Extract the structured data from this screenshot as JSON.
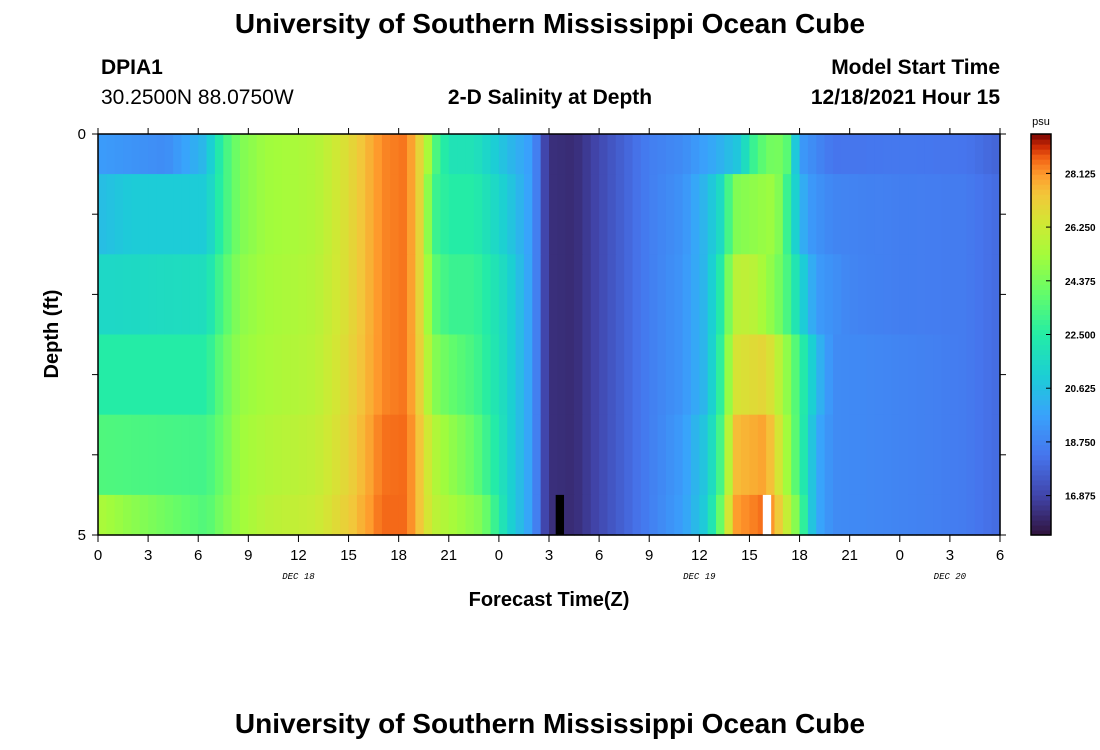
{
  "header": {
    "title": "University of Southern Mississippi Ocean Cube",
    "station_id": "DPIA1",
    "station_coords": "30.2500N  88.0750W",
    "subtitle": "2-D Salinity at Depth",
    "model_start_label": "Model Start Time",
    "model_start_value": "12/18/2021 Hour 15"
  },
  "footer": {
    "title": "University of Southern Mississippi Ocean Cube"
  },
  "chart_data": {
    "type": "heatmap",
    "title": "2-D Salinity at Depth",
    "xlabel": "Forecast Time(Z)",
    "ylabel": "Depth (ft)",
    "x_unit": "hours from Dec 18 00Z",
    "x_range": [
      0,
      54
    ],
    "y_range": [
      0,
      5
    ],
    "y_ticks": [
      0,
      5
    ],
    "x_tick_labels": [
      "0",
      "3",
      "6",
      "9",
      "12",
      "15",
      "18",
      "21",
      "0",
      "3",
      "6",
      "9",
      "12",
      "15",
      "18",
      "21",
      "0",
      "3",
      "6"
    ],
    "date_labels": [
      {
        "label": "DEC 18",
        "hour": 12
      },
      {
        "label": "DEC 19",
        "hour": 36
      },
      {
        "label": "DEC 20",
        "hour": 51
      }
    ],
    "depth_rows": [
      {
        "from": 0.0,
        "to": 0.5
      },
      {
        "from": 0.5,
        "to": 1.5
      },
      {
        "from": 1.5,
        "to": 2.5
      },
      {
        "from": 2.5,
        "to": 3.5
      },
      {
        "from": 3.5,
        "to": 4.5
      },
      {
        "from": 4.5,
        "to": 5.0
      }
    ],
    "salinity_keyframes_psu": [
      [
        [
          0,
          19.5
        ],
        [
          4,
          19.0
        ],
        [
          6.5,
          20.5
        ],
        [
          7.5,
          23.0
        ],
        [
          8.5,
          24.5
        ],
        [
          10,
          25.2
        ],
        [
          13,
          25.6
        ],
        [
          15,
          26.8
        ],
        [
          17,
          28.3
        ],
        [
          18.5,
          28.5
        ],
        [
          19.5,
          26.5
        ],
        [
          20.2,
          23.5
        ],
        [
          21,
          22.0
        ],
        [
          22.5,
          22.0
        ],
        [
          24.5,
          20.5
        ],
        [
          26,
          19.5
        ],
        [
          26.7,
          17.0
        ],
        [
          27.2,
          16.3
        ],
        [
          28.5,
          16.2
        ],
        [
          30,
          17.0
        ],
        [
          31.5,
          17.8
        ],
        [
          33,
          18.6
        ],
        [
          35,
          19.0
        ],
        [
          37,
          20.0
        ],
        [
          38.5,
          21.0
        ],
        [
          39,
          22.5
        ],
        [
          39.5,
          23.5
        ],
        [
          40.5,
          24.5
        ],
        [
          41.2,
          24.0
        ],
        [
          42,
          19.5
        ],
        [
          44,
          18.3
        ],
        [
          48,
          18.4
        ],
        [
          52,
          18.3
        ],
        [
          54,
          17.8
        ]
      ],
      [
        [
          0,
          20.5
        ],
        [
          2,
          21.0
        ],
        [
          6.5,
          21.0
        ],
        [
          7.5,
          23.0
        ],
        [
          8.5,
          24.5
        ],
        [
          10,
          25.2
        ],
        [
          13,
          25.6
        ],
        [
          15,
          26.8
        ],
        [
          17,
          28.3
        ],
        [
          18.5,
          28.5
        ],
        [
          19.5,
          26.5
        ],
        [
          20,
          23.2
        ],
        [
          21,
          22.5
        ],
        [
          22.5,
          22.5
        ],
        [
          24.5,
          21.0
        ],
        [
          26,
          19.5
        ],
        [
          26.7,
          17.0
        ],
        [
          27.2,
          16.3
        ],
        [
          28.5,
          16.2
        ],
        [
          30,
          17.0
        ],
        [
          31.5,
          17.8
        ],
        [
          33,
          18.6
        ],
        [
          35,
          19.2
        ],
        [
          36.5,
          20.5
        ],
        [
          37.5,
          22.0
        ],
        [
          38,
          24.5
        ],
        [
          39,
          24.8
        ],
        [
          40.5,
          25.2
        ],
        [
          41,
          24.0
        ],
        [
          41.5,
          22.0
        ],
        [
          42,
          20.5
        ],
        [
          42.5,
          19.5
        ],
        [
          44,
          18.8
        ],
        [
          48,
          18.6
        ],
        [
          52,
          18.5
        ],
        [
          54,
          18.0
        ]
      ],
      [
        [
          0,
          21.5
        ],
        [
          6.5,
          21.8
        ],
        [
          7.5,
          23.5
        ],
        [
          8.5,
          24.8
        ],
        [
          10,
          25.3
        ],
        [
          13,
          25.7
        ],
        [
          15,
          26.8
        ],
        [
          17,
          28.3
        ],
        [
          18.5,
          28.5
        ],
        [
          19.5,
          26.5
        ],
        [
          20,
          24.0
        ],
        [
          21,
          23.0
        ],
        [
          22.5,
          23.0
        ],
        [
          24.5,
          21.5
        ],
        [
          26,
          19.5
        ],
        [
          26.7,
          17.0
        ],
        [
          27.2,
          16.3
        ],
        [
          28.5,
          16.2
        ],
        [
          30,
          17.0
        ],
        [
          31.5,
          17.8
        ],
        [
          33,
          18.6
        ],
        [
          35,
          19.3
        ],
        [
          36.5,
          20.5
        ],
        [
          37.5,
          23.0
        ],
        [
          38,
          25.8
        ],
        [
          39,
          26.0
        ],
        [
          40,
          25.2
        ],
        [
          41,
          24.0
        ],
        [
          42,
          21.5
        ],
        [
          43,
          19.5
        ],
        [
          45,
          18.8
        ],
        [
          48,
          18.6
        ],
        [
          52,
          18.5
        ],
        [
          54,
          18.0
        ]
      ],
      [
        [
          0,
          22.5
        ],
        [
          6.5,
          22.5
        ],
        [
          7.5,
          24.0
        ],
        [
          8.5,
          25.0
        ],
        [
          10,
          25.4
        ],
        [
          13,
          25.8
        ],
        [
          15,
          26.9
        ],
        [
          17,
          28.3
        ],
        [
          18.5,
          28.5
        ],
        [
          19.5,
          26.6
        ],
        [
          20,
          24.8
        ],
        [
          21,
          24.0
        ],
        [
          22.5,
          23.3
        ],
        [
          24.5,
          21.5
        ],
        [
          26,
          19.5
        ],
        [
          26.7,
          17.0
        ],
        [
          27.2,
          16.3
        ],
        [
          28.5,
          16.2
        ],
        [
          30,
          17.0
        ],
        [
          31.5,
          17.8
        ],
        [
          33,
          18.6
        ],
        [
          35,
          19.3
        ],
        [
          36.5,
          20.5
        ],
        [
          37.5,
          23.5
        ],
        [
          38,
          26.5
        ],
        [
          40,
          27.0
        ],
        [
          41,
          25.5
        ],
        [
          42,
          23.0
        ],
        [
          43,
          20.5
        ],
        [
          44,
          19.0
        ],
        [
          48,
          18.8
        ],
        [
          52,
          18.5
        ],
        [
          54,
          18.0
        ]
      ],
      [
        [
          0,
          23.5
        ],
        [
          6.5,
          23.2
        ],
        [
          7.5,
          24.2
        ],
        [
          8.5,
          25.2
        ],
        [
          10,
          25.6
        ],
        [
          13,
          26.0
        ],
        [
          15,
          27.0
        ],
        [
          17,
          28.5
        ],
        [
          18.5,
          28.6
        ],
        [
          19.5,
          27.0
        ],
        [
          20,
          25.8
        ],
        [
          21,
          25.0
        ],
        [
          22.5,
          24.0
        ],
        [
          24.5,
          21.5
        ],
        [
          26,
          19.5
        ],
        [
          26.7,
          17.0
        ],
        [
          27.2,
          16.3
        ],
        [
          28.5,
          16.2
        ],
        [
          30,
          17.0
        ],
        [
          31.5,
          17.8
        ],
        [
          33,
          18.6
        ],
        [
          35,
          19.5
        ],
        [
          36.5,
          21.0
        ],
        [
          37.5,
          24.0
        ],
        [
          38,
          27.5
        ],
        [
          40,
          28.0
        ],
        [
          41,
          26.0
        ],
        [
          42,
          23.0
        ],
        [
          43,
          20.0
        ],
        [
          44,
          19.0
        ],
        [
          48,
          18.8
        ],
        [
          52,
          18.5
        ],
        [
          54,
          18.0
        ]
      ],
      [
        [
          0,
          25.5
        ],
        [
          2,
          24.8
        ],
        [
          6.5,
          23.5
        ],
        [
          7.5,
          24.5
        ],
        [
          8.5,
          25.2
        ],
        [
          10,
          25.8
        ],
        [
          13,
          26.2
        ],
        [
          15,
          27.2
        ],
        [
          17,
          28.6
        ],
        [
          18.5,
          28.6
        ],
        [
          19.5,
          27.0
        ],
        [
          20,
          26.0
        ],
        [
          21,
          25.5
        ],
        [
          23,
          24.5
        ],
        [
          24.5,
          21.5
        ],
        [
          26,
          19.5
        ],
        [
          26.7,
          17.0
        ],
        [
          27.2,
          16.3
        ],
        [
          28.5,
          16.2
        ],
        [
          30,
          17.0
        ],
        [
          31.5,
          17.8
        ],
        [
          33,
          18.6
        ],
        [
          35,
          19.6
        ],
        [
          36.5,
          21.2
        ],
        [
          37.5,
          25.0
        ],
        [
          38,
          28.0
        ],
        [
          40,
          28.6
        ],
        [
          41,
          26.8
        ],
        [
          42,
          24.0
        ],
        [
          42.5,
          21.5
        ],
        [
          43,
          20.0
        ],
        [
          44,
          19.0
        ],
        [
          48,
          18.8
        ],
        [
          52,
          18.5
        ],
        [
          54,
          18.0
        ]
      ]
    ],
    "gap_markers": [
      {
        "start_hour": 27.4,
        "end_hour": 27.9,
        "depth_from": 4.5,
        "depth_to": 5.0,
        "color": "#000000"
      },
      {
        "start_hour": 39.8,
        "end_hour": 40.3,
        "depth_from": 4.5,
        "depth_to": 5.0,
        "color": "#ffffff"
      }
    ],
    "colorbar": {
      "unit": "psu",
      "min": 15.5,
      "max": 29.5,
      "tick_labels": [
        "28.125",
        "26.250",
        "24.375",
        "22.500",
        "20.625",
        "18.750",
        "16.875"
      ]
    }
  }
}
